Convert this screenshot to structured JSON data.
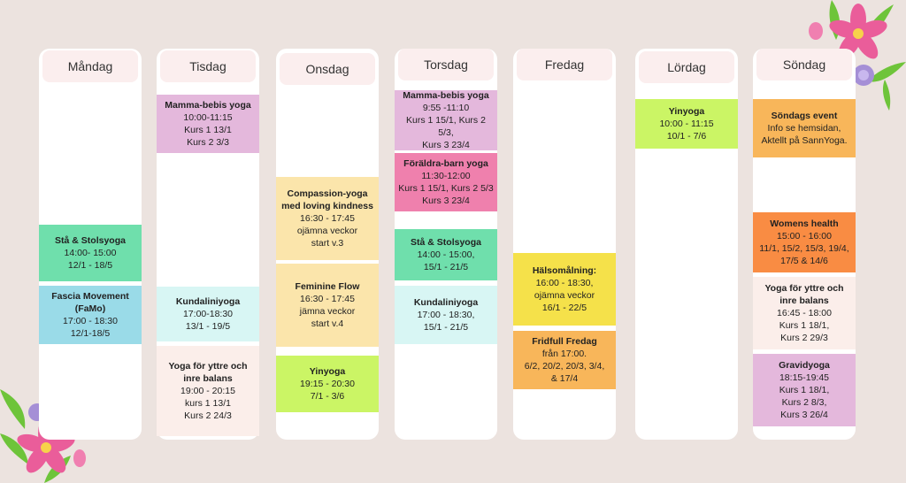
{
  "days": [
    {
      "name": "Måndag",
      "events": [
        {
          "title": [
            "Stå & Stolsyoga"
          ],
          "lines": [
            "14:00- 15:00",
            "12/1 - 18/5"
          ],
          "color": "#6fdfac"
        },
        {
          "title": [
            "Fascia Movement",
            "(FaMo)"
          ],
          "lines": [
            "17:00 - 18:30",
            "12/1-18/5"
          ],
          "color": "#9adbe8"
        }
      ]
    },
    {
      "name": "Tisdag",
      "events": [
        {
          "title": [
            "Mamma-bebis yoga"
          ],
          "lines": [
            "10:00-11:15",
            "Kurs 1 13/1",
            "Kurs 2 3/3"
          ],
          "color": "#e4b8dc"
        },
        {
          "title": [
            "Kundaliniyoga"
          ],
          "lines": [
            "17:00-18:30",
            "13/1 - 19/5"
          ],
          "color": "#d8f6f4"
        },
        {
          "title": [
            "Yoga för yttre och",
            "inre balans"
          ],
          "lines": [
            "19:00 - 20:15",
            "kurs 1 13/1",
            "Kurs 2 24/3"
          ],
          "color": "#fbeeea"
        }
      ]
    },
    {
      "name": "Onsdag",
      "events": [
        {
          "title": [
            "Compassion-yoga",
            "med loving kindness"
          ],
          "lines": [
            "16:30 - 17:45",
            "ojämna veckor",
            "start v.3"
          ],
          "color": "#fbe5ab"
        },
        {
          "title": [
            "Feminine Flow"
          ],
          "lines": [
            "16:30 - 17:45",
            "jämna veckor",
            "start v.4"
          ],
          "color": "#fbe5ab"
        },
        {
          "title": [
            "Yinyoga"
          ],
          "lines": [
            "19:15 - 20:30",
            "7/1 - 3/6"
          ],
          "color": "#cbf565"
        }
      ]
    },
    {
      "name": "Torsdag",
      "events": [
        {
          "title": [
            "Mamma-bebis yoga"
          ],
          "lines": [
            "9:55 -11:10",
            "Kurs 1 15/1, Kurs 2 5/3,",
            "Kurs 3 23/4"
          ],
          "color": "#e4b8dc"
        },
        {
          "title": [
            "Föräldra-barn yoga"
          ],
          "lines": [
            "11:30-12:00",
            "Kurs 1 15/1, Kurs 2 5/3",
            "Kurs 3 23/4"
          ],
          "color": "#ef80ad"
        },
        {
          "title": [
            "Stå & Stolsyoga"
          ],
          "lines": [
            "14:00 - 15:00,",
            "15/1 - 21/5"
          ],
          "color": "#6fdfac"
        },
        {
          "title": [
            "Kundaliniyoga"
          ],
          "lines": [
            "17:00 - 18:30,",
            "15/1 - 21/5"
          ],
          "color": "#d8f6f4"
        }
      ]
    },
    {
      "name": "Fredag",
      "events": [
        {
          "title": [
            "Hälsomålning:"
          ],
          "lines": [
            "16:00 - 18:30,",
            "ojämna veckor",
            "16/1 - 22/5"
          ],
          "color": "#f5e14a"
        },
        {
          "title": [
            "Fridfull Fredag"
          ],
          "lines": [
            "från 17:00.",
            "6/2, 20/2, 20/3, 3/4,",
            "& 17/4"
          ],
          "color": "#f8b65a"
        }
      ]
    },
    {
      "name": "Lördag",
      "events": [
        {
          "title": [
            "Yinyoga"
          ],
          "lines": [
            "10:00 - 11:15",
            "10/1 - 7/6"
          ],
          "color": "#cbf565"
        }
      ]
    },
    {
      "name": "Söndag",
      "events": [
        {
          "title": [
            "Söndags event"
          ],
          "lines": [
            "Info se hemsidan,",
            "Aktellt på SannYoga."
          ],
          "color": "#f8b65a"
        },
        {
          "title": [
            "Womens health"
          ],
          "lines": [
            "15:00 - 16:00",
            "11/1, 15/2, 15/3, 19/4,",
            "17/5 & 14/6"
          ],
          "color": "#f98c43"
        },
        {
          "title": [
            "Yoga för yttre och",
            "inre balans"
          ],
          "lines": [
            "16:45 - 18:00",
            "Kurs 1 18/1,",
            "Kurs 2 29/3"
          ],
          "color": "#fbeeea"
        },
        {
          "title": [
            "Gravidyoga"
          ],
          "lines": [
            "18:15-19:45",
            "Kurs 1 18/1,",
            "Kurs 2 8/3,",
            "Kurs 3 26/4"
          ],
          "color": "#e4b8dc"
        }
      ]
    }
  ]
}
